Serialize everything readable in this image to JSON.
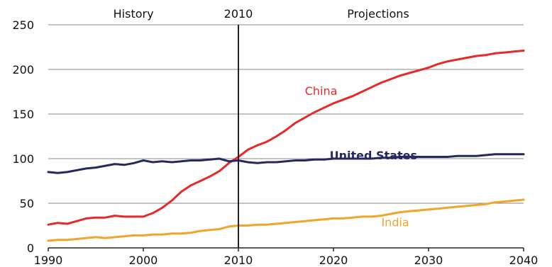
{
  "chart_data": {
    "type": "line",
    "title": "",
    "xlabel": "",
    "ylabel": "",
    "xlim": [
      1990,
      2040
    ],
    "ylim": [
      0,
      250
    ],
    "x_ticks": [
      1990,
      2000,
      2010,
      2020,
      2030,
      2040
    ],
    "y_ticks": [
      0,
      50,
      100,
      150,
      200,
      250
    ],
    "grid": "horizontal",
    "divider": {
      "x": 2010,
      "label": "2010"
    },
    "region_labels": {
      "left": "History",
      "right": "Projections"
    },
    "series": [
      {
        "name": "China",
        "color": "#e52a2a",
        "points": [
          [
            1990,
            26
          ],
          [
            1991,
            28
          ],
          [
            1992,
            27
          ],
          [
            1993,
            30
          ],
          [
            1994,
            33
          ],
          [
            1995,
            34
          ],
          [
            1996,
            34
          ],
          [
            1997,
            36
          ],
          [
            1998,
            35
          ],
          [
            1999,
            35
          ],
          [
            2000,
            35
          ],
          [
            2001,
            39
          ],
          [
            2002,
            45
          ],
          [
            2003,
            53
          ],
          [
            2004,
            63
          ],
          [
            2005,
            70
          ],
          [
            2006,
            75
          ],
          [
            2007,
            80
          ],
          [
            2008,
            86
          ],
          [
            2009,
            95
          ],
          [
            2010,
            102
          ],
          [
            2011,
            110
          ],
          [
            2012,
            115
          ],
          [
            2013,
            119
          ],
          [
            2014,
            125
          ],
          [
            2015,
            132
          ],
          [
            2016,
            140
          ],
          [
            2017,
            146
          ],
          [
            2018,
            152
          ],
          [
            2019,
            157
          ],
          [
            2020,
            162
          ],
          [
            2021,
            166
          ],
          [
            2022,
            170
          ],
          [
            2023,
            175
          ],
          [
            2024,
            180
          ],
          [
            2025,
            185
          ],
          [
            2026,
            189
          ],
          [
            2027,
            193
          ],
          [
            2028,
            196
          ],
          [
            2029,
            199
          ],
          [
            2030,
            202
          ],
          [
            2031,
            206
          ],
          [
            2032,
            209
          ],
          [
            2033,
            211
          ],
          [
            2034,
            213
          ],
          [
            2035,
            215
          ],
          [
            2036,
            216
          ],
          [
            2037,
            218
          ],
          [
            2038,
            219
          ],
          [
            2039,
            220
          ],
          [
            2040,
            221
          ]
        ]
      },
      {
        "name": "United States",
        "color": "#27285f",
        "points": [
          [
            1990,
            85
          ],
          [
            1991,
            84
          ],
          [
            1992,
            85
          ],
          [
            1993,
            87
          ],
          [
            1994,
            89
          ],
          [
            1995,
            90
          ],
          [
            1996,
            92
          ],
          [
            1997,
            94
          ],
          [
            1998,
            93
          ],
          [
            1999,
            95
          ],
          [
            2000,
            98
          ],
          [
            2001,
            96
          ],
          [
            2002,
            97
          ],
          [
            2003,
            96
          ],
          [
            2004,
            97
          ],
          [
            2005,
            98
          ],
          [
            2006,
            98
          ],
          [
            2007,
            99
          ],
          [
            2008,
            100
          ],
          [
            2009,
            97
          ],
          [
            2010,
            98
          ],
          [
            2011,
            96
          ],
          [
            2012,
            95
          ],
          [
            2013,
            96
          ],
          [
            2014,
            96
          ],
          [
            2015,
            97
          ],
          [
            2016,
            98
          ],
          [
            2017,
            98
          ],
          [
            2018,
            99
          ],
          [
            2019,
            99
          ],
          [
            2020,
            100
          ],
          [
            2021,
            100
          ],
          [
            2022,
            100
          ],
          [
            2023,
            100
          ],
          [
            2024,
            100
          ],
          [
            2025,
            101
          ],
          [
            2026,
            101
          ],
          [
            2027,
            102
          ],
          [
            2028,
            102
          ],
          [
            2029,
            102
          ],
          [
            2030,
            102
          ],
          [
            2031,
            102
          ],
          [
            2032,
            102
          ],
          [
            2033,
            103
          ],
          [
            2034,
            103
          ],
          [
            2035,
            103
          ],
          [
            2036,
            104
          ],
          [
            2037,
            105
          ],
          [
            2038,
            105
          ],
          [
            2039,
            105
          ],
          [
            2040,
            105
          ]
        ]
      },
      {
        "name": "India",
        "color": "#f0a52b",
        "points": [
          [
            1990,
            8
          ],
          [
            1991,
            9
          ],
          [
            1992,
            9
          ],
          [
            1993,
            10
          ],
          [
            1994,
            11
          ],
          [
            1995,
            12
          ],
          [
            1996,
            11
          ],
          [
            1997,
            12
          ],
          [
            1998,
            13
          ],
          [
            1999,
            14
          ],
          [
            2000,
            14
          ],
          [
            2001,
            15
          ],
          [
            2002,
            15
          ],
          [
            2003,
            16
          ],
          [
            2004,
            16
          ],
          [
            2005,
            17
          ],
          [
            2006,
            19
          ],
          [
            2007,
            20
          ],
          [
            2008,
            21
          ],
          [
            2009,
            24
          ],
          [
            2010,
            25
          ],
          [
            2011,
            25
          ],
          [
            2012,
            26
          ],
          [
            2013,
            26
          ],
          [
            2014,
            27
          ],
          [
            2015,
            28
          ],
          [
            2016,
            29
          ],
          [
            2017,
            30
          ],
          [
            2018,
            31
          ],
          [
            2019,
            32
          ],
          [
            2020,
            33
          ],
          [
            2021,
            33
          ],
          [
            2022,
            34
          ],
          [
            2023,
            35
          ],
          [
            2024,
            35
          ],
          [
            2025,
            36
          ],
          [
            2026,
            38
          ],
          [
            2027,
            40
          ],
          [
            2028,
            41
          ],
          [
            2029,
            42
          ],
          [
            2030,
            43
          ],
          [
            2031,
            44
          ],
          [
            2032,
            45
          ],
          [
            2033,
            46
          ],
          [
            2034,
            47
          ],
          [
            2035,
            48
          ],
          [
            2036,
            49
          ],
          [
            2037,
            51
          ],
          [
            2038,
            52
          ],
          [
            2039,
            53
          ],
          [
            2040,
            54
          ]
        ]
      }
    ]
  }
}
